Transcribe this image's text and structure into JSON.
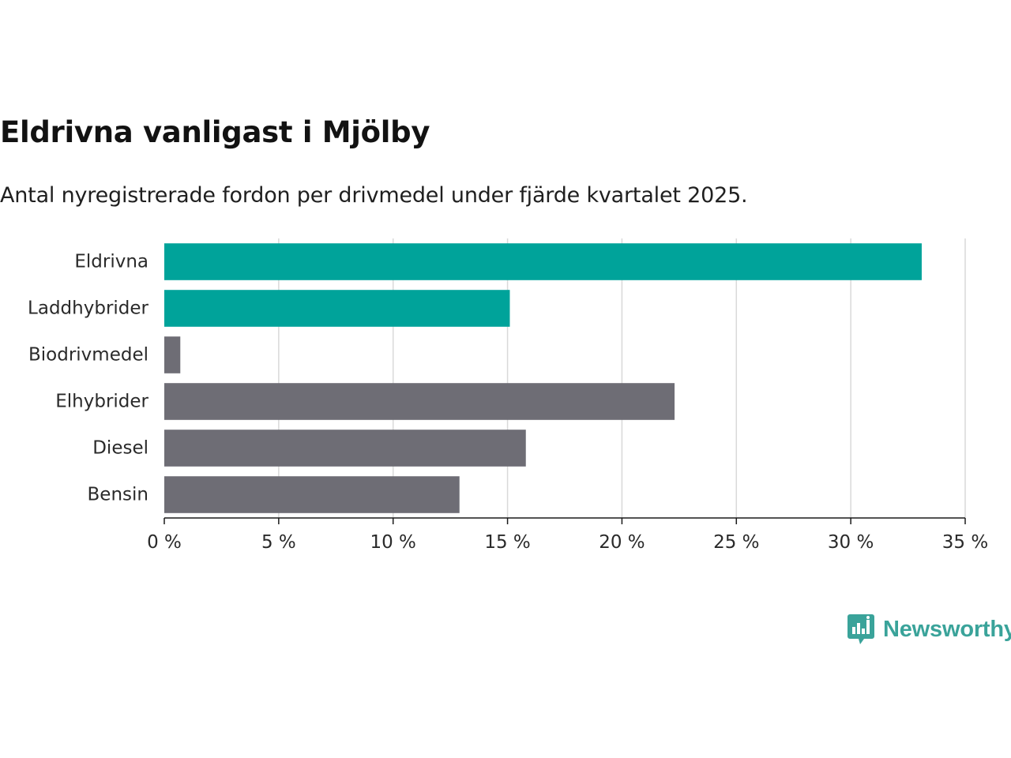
{
  "chart_data": {
    "type": "bar",
    "orientation": "horizontal",
    "title": "Eldrivna vanligast i Mjölby",
    "subtitle": "Antal nyregistrerade fordon per drivmedel under fjärde kvartalet 2025.",
    "categories": [
      "Eldrivna",
      "Laddhybrider",
      "Biodrivmedel",
      "Elhybrider",
      "Diesel",
      "Bensin"
    ],
    "values": [
      33.1,
      15.1,
      0.7,
      22.3,
      15.8,
      12.9
    ],
    "bar_colors": [
      "#00a39a",
      "#00a39a",
      "#6e6d75",
      "#6e6d75",
      "#6e6d75",
      "#6e6d75"
    ],
    "xlim": [
      0,
      35
    ],
    "x_ticks": [
      0,
      5,
      10,
      15,
      20,
      25,
      30,
      35
    ],
    "x_tick_labels": [
      "0 %",
      "5 %",
      "10 %",
      "15 %",
      "20 %",
      "25 %",
      "30 %",
      "35 %"
    ],
    "xlabel": "",
    "ylabel": "",
    "grid": true
  },
  "brand": {
    "name": "Newsworthy",
    "icon": "newsworthy-logo-icon",
    "color": "#3aa39a"
  }
}
